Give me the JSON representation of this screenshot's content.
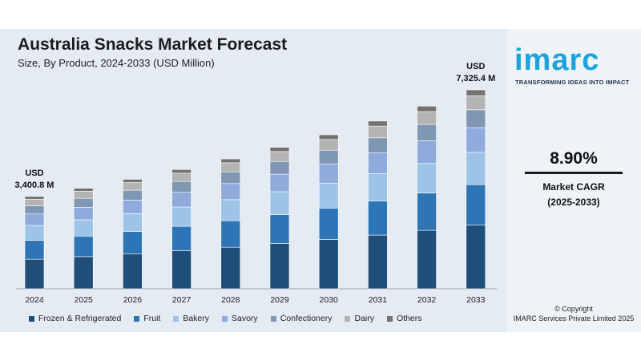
{
  "header": {
    "title": "Australia Snacks Market Forecast",
    "subtitle": "Size, By Product, 2024-2033 (USD Million)"
  },
  "brand": {
    "logo_text": "imarc",
    "tagline": "TRANSFORMING IDEAS INTO IMPACT",
    "logo_color": "#1ba3de"
  },
  "kpi": {
    "cagr_value": "8.90%",
    "cagr_label": "Market CAGR",
    "cagr_period": "(2025-2033)"
  },
  "footer": {
    "copyright_line1": "© Copyright",
    "copyright_line2": "IMARC Services Private Limited 2025"
  },
  "chart_data": {
    "type": "bar",
    "stacked": true,
    "title": "Australia Snacks Market Forecast",
    "subtitle": "Size, By Product, 2024-2033 (USD Million)",
    "categories": [
      "2024",
      "2025",
      "2026",
      "2027",
      "2028",
      "2029",
      "2030",
      "2031",
      "2032",
      "2033"
    ],
    "totals": [
      3400.8,
      3703.5,
      4033.1,
      4392.1,
      4783.0,
      5208.7,
      5672.2,
      6177.0,
      6726.8,
      7325.4
    ],
    "series": [
      {
        "name": "Frozen & Refrigerated",
        "color": "#1f4e79",
        "values": [
          1088,
          1185,
          1291,
          1405,
          1531,
          1667,
          1815,
          1977,
          2153,
          2344
        ]
      },
      {
        "name": "Fruit",
        "color": "#2e75b6",
        "values": [
          694,
          756,
          823,
          896,
          976,
          1063,
          1157,
          1260,
          1372,
          1494
        ]
      },
      {
        "name": "Bakery",
        "color": "#9dc3e6",
        "values": [
          551,
          600,
          653,
          711,
          775,
          844,
          919,
          1001,
          1090,
          1187
        ]
      },
      {
        "name": "Savory",
        "color": "#8faadc",
        "values": [
          422,
          459,
          500,
          545,
          593,
          646,
          703,
          766,
          834,
          908
        ]
      },
      {
        "name": "Confectionery",
        "color": "#7f97b2",
        "values": [
          306,
          333,
          363,
          395,
          430,
          469,
          510,
          556,
          605,
          659
        ]
      },
      {
        "name": "Dairy",
        "color": "#b3b3b3",
        "values": [
          238,
          259,
          282,
          307,
          335,
          365,
          397,
          432,
          471,
          513
        ]
      },
      {
        "name": "Others",
        "color": "#767171",
        "values": [
          102,
          111,
          121,
          132,
          143,
          156,
          170,
          185,
          202,
          220
        ]
      }
    ],
    "annotations": {
      "first": {
        "line1": "USD",
        "line2": "3,400.8 M"
      },
      "last": {
        "line1": "USD",
        "line2": "7,325.4 M"
      }
    },
    "ylim": [
      0,
      7500
    ],
    "grid": false,
    "legend_position": "bottom"
  }
}
